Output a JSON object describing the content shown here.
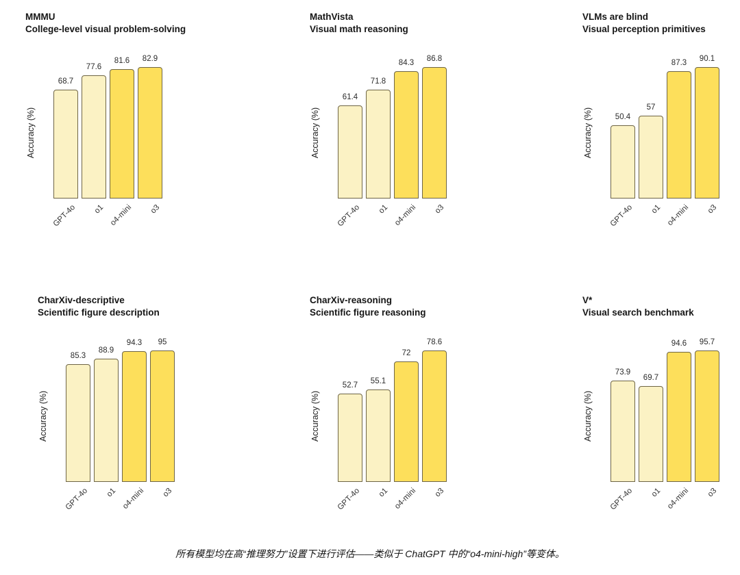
{
  "page": {
    "background": "#ffffff"
  },
  "style": {
    "light_fill": "#FBF2C4",
    "accent_fill": "#FDDF5B",
    "bar_border": "#6e6545",
    "title_color": "#161616",
    "value_label_color": "#2b2b2b"
  },
  "models": [
    "GPT-4o",
    "o1",
    "o4-mini",
    "o3"
  ],
  "chart_data": [
    {
      "type": "bar",
      "title": "MMMU",
      "subtitle": "College-level visual problem-solving",
      "ylabel": "Accuracy (%)",
      "categories": [
        "GPT-4o",
        "o1",
        "o4-mini",
        "o3"
      ],
      "values": [
        68.7,
        77.6,
        81.6,
        82.9
      ],
      "value_labels": [
        "68.7",
        "77.6",
        "81.6",
        "82.9"
      ],
      "bar_colors": [
        "light",
        "light",
        "accent",
        "accent"
      ],
      "grid": false,
      "legend": false,
      "data_labels": true
    },
    {
      "type": "bar",
      "title": "MathVista",
      "subtitle": "Visual math reasoning",
      "ylabel": "Accuracy (%)",
      "categories": [
        "GPT-4o",
        "o1",
        "o4-mini",
        "o3"
      ],
      "values": [
        61.4,
        71.8,
        84.3,
        86.8
      ],
      "value_labels": [
        "61.4",
        "71.8",
        "84.3",
        "86.8"
      ],
      "bar_colors": [
        "light",
        "light",
        "accent",
        "accent"
      ],
      "grid": false,
      "legend": false,
      "data_labels": true
    },
    {
      "type": "bar",
      "title": "VLMs are blind",
      "subtitle": "Visual perception primitives",
      "ylabel": "Accuracy (%)",
      "categories": [
        "GPT-4o",
        "o1",
        "o4-mini",
        "o3"
      ],
      "values": [
        50.4,
        57,
        87.3,
        90.1
      ],
      "value_labels": [
        "50.4",
        "57",
        "87.3",
        "90.1"
      ],
      "bar_colors": [
        "light",
        "light",
        "accent",
        "accent"
      ],
      "grid": false,
      "legend": false,
      "data_labels": true
    },
    {
      "type": "bar",
      "title": "CharXiv-descriptive",
      "subtitle": "Scientific figure description",
      "ylabel": "Accuracy (%)",
      "categories": [
        "GPT-4o",
        "o1",
        "o4-mini",
        "o3"
      ],
      "values": [
        85.3,
        88.9,
        94.3,
        95
      ],
      "value_labels": [
        "85.3",
        "88.9",
        "94.3",
        "95"
      ],
      "bar_colors": [
        "light",
        "light",
        "accent",
        "accent"
      ],
      "grid": false,
      "legend": false,
      "data_labels": true
    },
    {
      "type": "bar",
      "title": "CharXiv-reasoning",
      "subtitle": "Scientific figure reasoning",
      "ylabel": "Accuracy (%)",
      "categories": [
        "GPT-4o",
        "o1",
        "o4-mini",
        "o3"
      ],
      "values": [
        52.7,
        55.1,
        72,
        78.6
      ],
      "value_labels": [
        "52.7",
        "55.1",
        "72",
        "78.6"
      ],
      "bar_colors": [
        "light",
        "light",
        "accent",
        "accent"
      ],
      "grid": false,
      "legend": false,
      "data_labels": true
    },
    {
      "type": "bar",
      "title": "V*",
      "subtitle": "Visual search benchmark",
      "ylabel": "Accuracy (%)",
      "categories": [
        "GPT-4o",
        "o1",
        "o4-mini",
        "o3"
      ],
      "values": [
        73.9,
        69.7,
        94.6,
        95.7
      ],
      "value_labels": [
        "73.9",
        "69.7",
        "94.6",
        "95.7"
      ],
      "bar_colors": [
        "light",
        "light",
        "accent",
        "accent"
      ],
      "grid": false,
      "legend": false,
      "data_labels": true
    }
  ],
  "footer": {
    "text": "所有模型均在高“推理努力”设置下进行评估——类似于 ChatGPT 中的“o4-mini-high”等变体。"
  }
}
